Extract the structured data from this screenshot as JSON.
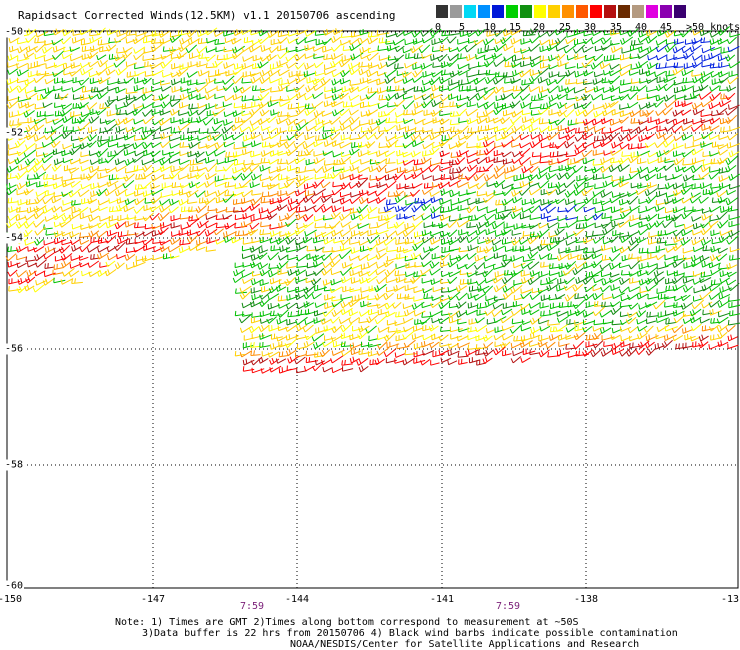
{
  "title": "Rapidsact Corrected Winds(12.5KM) v1.1 20150706 ascending",
  "legend": {
    "colors": [
      "#333333",
      "#9a9a9a",
      "#00d8f5",
      "#0090ff",
      "#0018d8",
      "#00d000",
      "#109010",
      "#ffff00",
      "#ffd000",
      "#ff9000",
      "#ff5800",
      "#ff0000",
      "#b41010",
      "#6a2a00",
      "#b49a80",
      "#e000e0",
      "#8a00b0",
      "#3a0070"
    ],
    "labels": [
      "0",
      "5",
      "10",
      "15",
      "20",
      "25",
      "30",
      "35",
      "40",
      "45",
      ">50 knots"
    ]
  },
  "map": {
    "lat_labels": [
      "-50",
      "-52",
      "-54",
      "-56",
      "-58",
      "-60"
    ],
    "lon_labels": [
      "-150",
      "-147",
      "-144",
      "-141",
      "-138",
      "-13"
    ],
    "time_labels": [
      "7:59",
      "7:59"
    ]
  },
  "notes": [
    "Note: 1) Times are GMT 2)Times along bottom correspond to measurement at ~50S",
    "3)Data buffer is 22 hrs from 20150706 4) Black wind barbs indicate possible contamination",
    "NOAA/NESDIS/Center for Satellite Applications and Research"
  ],
  "wind_colors": {
    "light": "#ffff00",
    "yellow": "#ffd000",
    "green": "#00c000",
    "darkgreen": "#108a10",
    "orange": "#ff8c00",
    "red": "#ff0000",
    "darkred": "#b41010",
    "blue": "#0020e0"
  }
}
